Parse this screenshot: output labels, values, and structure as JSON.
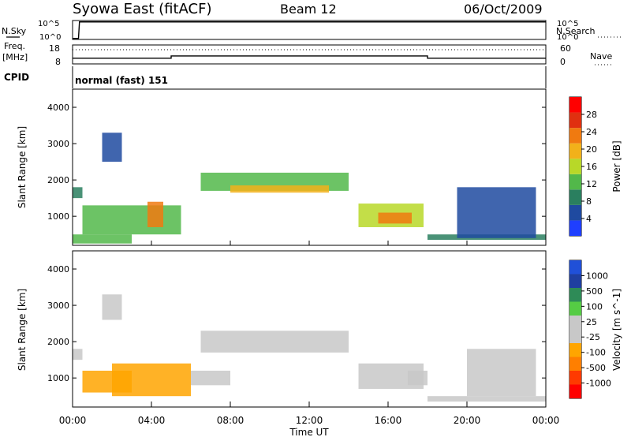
{
  "header": {
    "station": "Syowa East (fitACF)",
    "beam": "Beam 12",
    "date": "06/Oct/2009"
  },
  "panel_labels": {
    "nsky": "N.Sky",
    "nsearch": "N.Search",
    "freq": "Freq.",
    "freq_unit": "[MHz]",
    "nave": "Nave",
    "cpid": "CPID",
    "cpid_value": "normal (fast) 151"
  },
  "colors": {
    "background": "#ffffff",
    "axis": "#000000",
    "power_scale": [
      "#1f3fff",
      "#1f4aa0",
      "#2a7f5f",
      "#52b84a",
      "#b8d828",
      "#f2b11a",
      "#f07a10",
      "#e03010",
      "#ff0000"
    ],
    "velocity_scale": [
      "#ff0000",
      "#ff3a00",
      "#ff7f00",
      "#ffa500",
      "#c8c8c8",
      "#c8c8c8",
      "#55cc44",
      "#2e8b57",
      "#1f3fa0",
      "#2050d8"
    ]
  },
  "chart_data": [
    {
      "type": "line",
      "panel": "noise",
      "left_label": "N.Sky",
      "right_label": "N.Search",
      "left_ticks": [
        "10^5",
        "10^0"
      ],
      "right_ticks": [
        "10^5",
        "10^0"
      ],
      "series": [
        {
          "name": "N.Sky",
          "style": "solid",
          "x": [
            0,
            0.3,
            0.35,
            24
          ],
          "y": [
            0.3,
            0.3,
            5.1,
            5.1
          ]
        }
      ]
    },
    {
      "type": "line",
      "panel": "frequency",
      "left_label": "Freq. [MHz]",
      "right_label": "Nave",
      "ylim_left": [
        8,
        18
      ],
      "ylim_right": [
        0,
        60
      ],
      "left_ticks": [
        "18",
        "8"
      ],
      "right_ticks": [
        "60",
        "0"
      ],
      "series": [
        {
          "name": "Freq.",
          "style": "solid",
          "x": [
            0,
            5,
            5,
            18,
            18,
            24
          ],
          "y": [
            11,
            11,
            12.2,
            12.2,
            11,
            11
          ]
        },
        {
          "name": "Nave",
          "style": "dotted",
          "x": [
            0,
            24
          ],
          "y": [
            45,
            45
          ]
        }
      ]
    },
    {
      "type": "heatmap",
      "panel": "power",
      "ylabel": "Slant Range [km]",
      "xlim": [
        0,
        24
      ],
      "ylim": [
        200,
        4500
      ],
      "yticks": [
        1000,
        2000,
        3000,
        4000
      ],
      "colorbar_label": "Power [dB]",
      "colorbar_ticks": [
        "28",
        "24",
        "20",
        "16",
        "12",
        "8",
        "4"
      ],
      "colorbar_range": [
        0,
        32
      ],
      "regions": [
        {
          "x": [
            0,
            0.5
          ],
          "y": [
            1500,
            1800
          ],
          "value": 8
        },
        {
          "x": [
            0,
            3
          ],
          "y": [
            250,
            500
          ],
          "value": 12
        },
        {
          "x": [
            0.5,
            5.5
          ],
          "y": [
            500,
            1300
          ],
          "value": 12
        },
        {
          "x": [
            3.8,
            4.6
          ],
          "y": [
            700,
            1400
          ],
          "value": 22
        },
        {
          "x": [
            1.5,
            2.5
          ],
          "y": [
            2500,
            3300
          ],
          "value": 6
        },
        {
          "x": [
            6.5,
            14
          ],
          "y": [
            1700,
            2200
          ],
          "value": 12
        },
        {
          "x": [
            8,
            13
          ],
          "y": [
            1650,
            1850
          ],
          "value": 18
        },
        {
          "x": [
            14.5,
            17.8
          ],
          "y": [
            700,
            1350
          ],
          "value": 16
        },
        {
          "x": [
            15.5,
            17.2
          ],
          "y": [
            800,
            1100
          ],
          "value": 22
        },
        {
          "x": [
            18,
            24
          ],
          "y": [
            350,
            500
          ],
          "value": 8
        },
        {
          "x": [
            19.5,
            23.5
          ],
          "y": [
            400,
            1800
          ],
          "value": 6
        }
      ]
    },
    {
      "type": "heatmap",
      "panel": "velocity",
      "ylabel": "Slant Range [km]",
      "xlabel": "Time UT",
      "xlim": [
        0,
        24
      ],
      "ylim": [
        200,
        4500
      ],
      "yticks": [
        1000,
        2000,
        3000,
        4000
      ],
      "xticks": [
        "00:00",
        "04:00",
        "08:00",
        "12:00",
        "16:00",
        "20:00",
        "00:00"
      ],
      "colorbar_label": "Velocity [m s^-1]",
      "colorbar_ticks": [
        "1000",
        "500",
        "100",
        "25",
        "-25",
        "-100",
        "-500",
        "-1000"
      ],
      "colorbar_range": [
        -1200,
        1200
      ],
      "regions": [
        {
          "x": [
            0,
            0.5
          ],
          "y": [
            1500,
            1800
          ],
          "value": -150
        },
        {
          "x": [
            0.5,
            3
          ],
          "y": [
            600,
            1200
          ],
          "value": -300
        },
        {
          "x": [
            2,
            6
          ],
          "y": [
            500,
            1400
          ],
          "value": -400
        },
        {
          "x": [
            1.5,
            2.5
          ],
          "y": [
            2600,
            3300
          ],
          "value": 0
        },
        {
          "x": [
            6,
            8
          ],
          "y": [
            800,
            1200
          ],
          "value": -200
        },
        {
          "x": [
            6.5,
            14
          ],
          "y": [
            1700,
            2300
          ],
          "value": 0
        },
        {
          "x": [
            14.5,
            17.8
          ],
          "y": [
            700,
            1400
          ],
          "value": -150
        },
        {
          "x": [
            17,
            18
          ],
          "y": [
            800,
            1200
          ],
          "value": 150
        },
        {
          "x": [
            18,
            24
          ],
          "y": [
            350,
            500
          ],
          "value": -150
        },
        {
          "x": [
            20,
            23.5
          ],
          "y": [
            500,
            1800
          ],
          "value": -100
        }
      ]
    }
  ]
}
